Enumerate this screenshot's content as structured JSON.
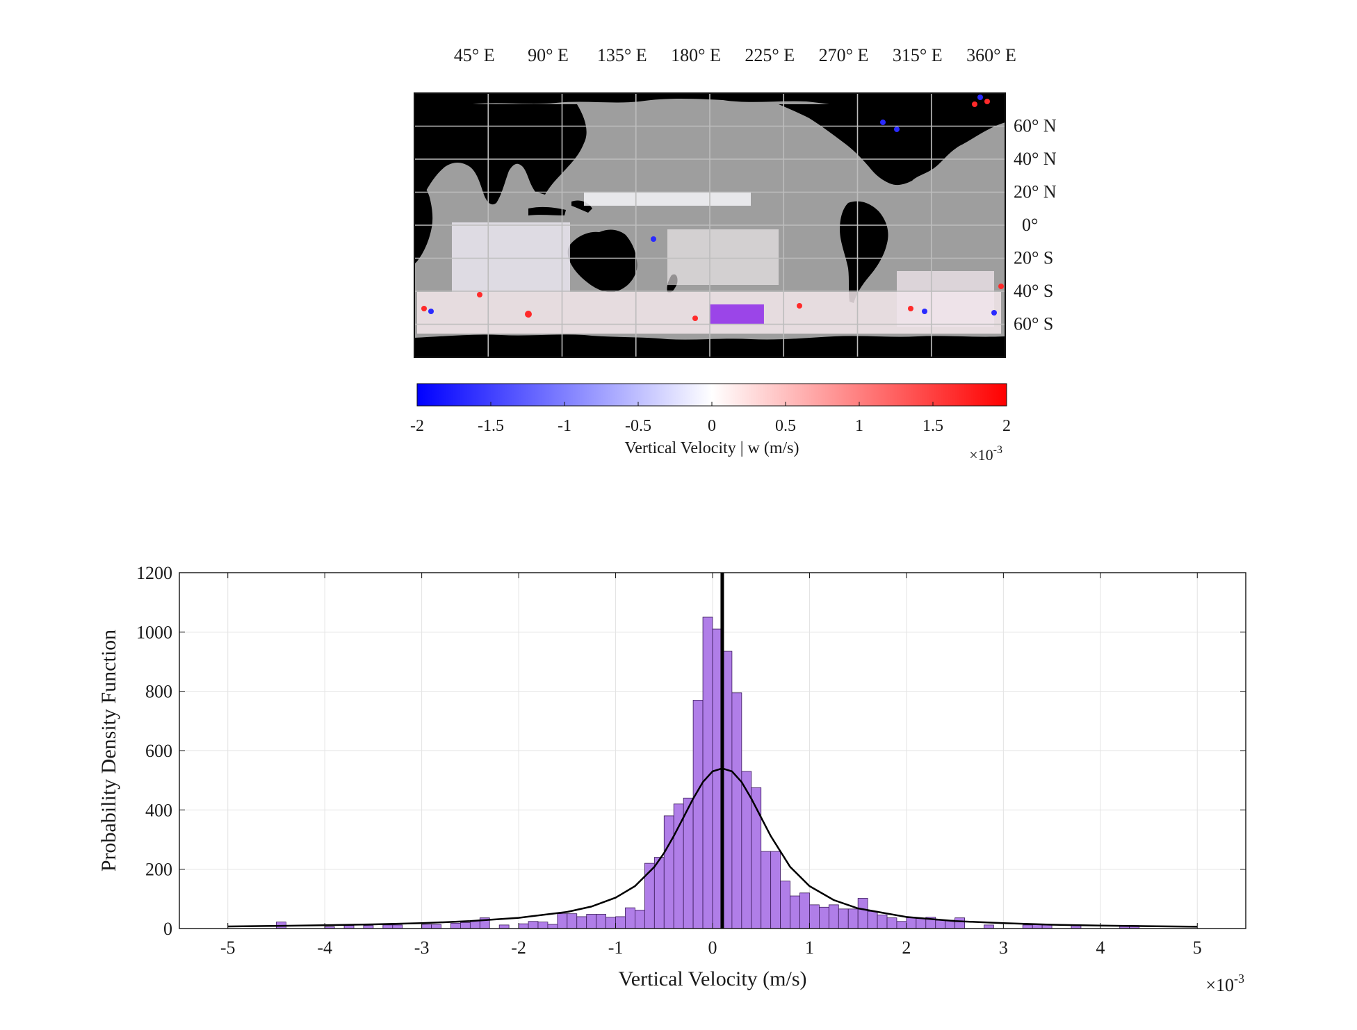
{
  "chart_data": [
    {
      "type": "map",
      "lon_ticks": [
        "45° E",
        "90° E",
        "135° E",
        "180° E",
        "225° E",
        "270° E",
        "315° E",
        "360° E"
      ],
      "lat_ticks": [
        "60° N",
        "40° N",
        "20° N",
        "0°",
        "20° S",
        "40° S",
        "60° S"
      ],
      "lon_values": [
        45,
        90,
        135,
        180,
        225,
        270,
        315,
        360
      ],
      "lat_values": [
        60,
        40,
        20,
        0,
        -20,
        -40,
        -60
      ],
      "xlim": [
        0,
        360
      ],
      "ylim": [
        -80,
        80
      ],
      "land_color": "#000000",
      "ocean_color": "#9e9e9e",
      "highlight_region": {
        "lon": [
          180,
          213
        ],
        "lat": [
          -60,
          -48
        ],
        "color": "#9b45e8"
      },
      "colorbar": {
        "label": "Vertical Velocity | w (m/s)",
        "ticks": [
          "-2",
          "-1.5",
          "-1",
          "-0.5",
          "0",
          "0.5",
          "1",
          "1.5",
          "2"
        ],
        "tick_values": [
          -2,
          -1.5,
          -1,
          -0.5,
          0,
          0.5,
          1,
          1.5,
          2
        ],
        "range": [
          -2,
          2
        ],
        "multiplier": "×10",
        "multiplier_exp": "-3",
        "colors": [
          "#0000ff",
          "#ffffff",
          "#ff0000"
        ]
      }
    },
    {
      "type": "bar",
      "subtype": "histogram",
      "xlabel": "Vertical Velocity (m/s)",
      "ylabel": "Probability Density Function",
      "x_multiplier": "×10",
      "x_multiplier_exp": "-3",
      "xlim": [
        -5.5,
        5.5
      ],
      "ylim": [
        0,
        1200
      ],
      "x_ticks": [
        "-5",
        "-4",
        "-3",
        "-2",
        "-1",
        "0",
        "1",
        "2",
        "3",
        "4",
        "5"
      ],
      "x_tick_values": [
        -5,
        -4,
        -3,
        -2,
        -1,
        0,
        1,
        2,
        3,
        4,
        5
      ],
      "y_ticks": [
        "0",
        "200",
        "400",
        "600",
        "800",
        "1000",
        "1200"
      ],
      "y_tick_values": [
        0,
        200,
        400,
        600,
        800,
        1000,
        1200
      ],
      "grid": true,
      "bin_width": 0.1,
      "bar_color": "#b07ee8",
      "bar_edge": "#3a1a5a",
      "bins": [
        {
          "x": -4.45,
          "y": 22
        },
        {
          "x": -3.95,
          "y": 6
        },
        {
          "x": -3.75,
          "y": 10
        },
        {
          "x": -3.55,
          "y": 10
        },
        {
          "x": -3.35,
          "y": 12
        },
        {
          "x": -3.25,
          "y": 12
        },
        {
          "x": -2.95,
          "y": 14
        },
        {
          "x": -2.85,
          "y": 14
        },
        {
          "x": -2.65,
          "y": 18
        },
        {
          "x": -2.55,
          "y": 20
        },
        {
          "x": -2.45,
          "y": 26
        },
        {
          "x": -2.35,
          "y": 36
        },
        {
          "x": -2.15,
          "y": 12
        },
        {
          "x": -1.95,
          "y": 16
        },
        {
          "x": -1.85,
          "y": 24
        },
        {
          "x": -1.75,
          "y": 22
        },
        {
          "x": -1.65,
          "y": 14
        },
        {
          "x": -1.55,
          "y": 50
        },
        {
          "x": -1.45,
          "y": 50
        },
        {
          "x": -1.35,
          "y": 40
        },
        {
          "x": -1.25,
          "y": 48
        },
        {
          "x": -1.15,
          "y": 48
        },
        {
          "x": -1.05,
          "y": 38
        },
        {
          "x": -0.95,
          "y": 40
        },
        {
          "x": -0.85,
          "y": 70
        },
        {
          "x": -0.75,
          "y": 62
        },
        {
          "x": -0.65,
          "y": 220
        },
        {
          "x": -0.55,
          "y": 240
        },
        {
          "x": -0.45,
          "y": 380
        },
        {
          "x": -0.35,
          "y": 420
        },
        {
          "x": -0.25,
          "y": 440
        },
        {
          "x": -0.15,
          "y": 770
        },
        {
          "x": -0.05,
          "y": 1050
        },
        {
          "x": 0.05,
          "y": 1010
        },
        {
          "x": 0.15,
          "y": 935
        },
        {
          "x": 0.25,
          "y": 795
        },
        {
          "x": 0.35,
          "y": 530
        },
        {
          "x": 0.45,
          "y": 475
        },
        {
          "x": 0.55,
          "y": 260
        },
        {
          "x": 0.65,
          "y": 260
        },
        {
          "x": 0.75,
          "y": 160
        },
        {
          "x": 0.85,
          "y": 110
        },
        {
          "x": 0.95,
          "y": 120
        },
        {
          "x": 1.05,
          "y": 80
        },
        {
          "x": 1.15,
          "y": 72
        },
        {
          "x": 1.25,
          "y": 80
        },
        {
          "x": 1.35,
          "y": 66
        },
        {
          "x": 1.45,
          "y": 66
        },
        {
          "x": 1.55,
          "y": 102
        },
        {
          "x": 1.65,
          "y": 58
        },
        {
          "x": 1.75,
          "y": 46
        },
        {
          "x": 1.85,
          "y": 36
        },
        {
          "x": 1.95,
          "y": 24
        },
        {
          "x": 2.05,
          "y": 36
        },
        {
          "x": 2.15,
          "y": 34
        },
        {
          "x": 2.25,
          "y": 38
        },
        {
          "x": 2.35,
          "y": 28
        },
        {
          "x": 2.45,
          "y": 28
        },
        {
          "x": 2.55,
          "y": 36
        },
        {
          "x": 2.85,
          "y": 12
        },
        {
          "x": 3.25,
          "y": 12
        },
        {
          "x": 3.35,
          "y": 14
        },
        {
          "x": 3.45,
          "y": 12
        },
        {
          "x": 3.75,
          "y": 10
        },
        {
          "x": 4.25,
          "y": 10
        },
        {
          "x": 4.35,
          "y": 10
        }
      ],
      "fit_curve": {
        "color": "#000000",
        "x": [
          -5,
          -4.5,
          -4,
          -3.5,
          -3,
          -2.5,
          -2,
          -1.5,
          -1.25,
          -1,
          -0.8,
          -0.6,
          -0.5,
          -0.4,
          -0.3,
          -0.2,
          -0.1,
          0,
          0.1,
          0.2,
          0.3,
          0.4,
          0.5,
          0.6,
          0.8,
          1,
          1.25,
          1.5,
          2,
          2.5,
          3,
          3.5,
          4,
          4.5,
          5
        ],
        "y": [
          7,
          9,
          11,
          14,
          18,
          25,
          36,
          56,
          74,
          104,
          143,
          208,
          255,
          312,
          375,
          438,
          494,
          530,
          540,
          530,
          494,
          438,
          375,
          312,
          208,
          143,
          96,
          68,
          39,
          25,
          18,
          13,
          10,
          8,
          6
        ]
      },
      "vline": {
        "x": 0.1,
        "color": "#000000"
      }
    }
  ]
}
